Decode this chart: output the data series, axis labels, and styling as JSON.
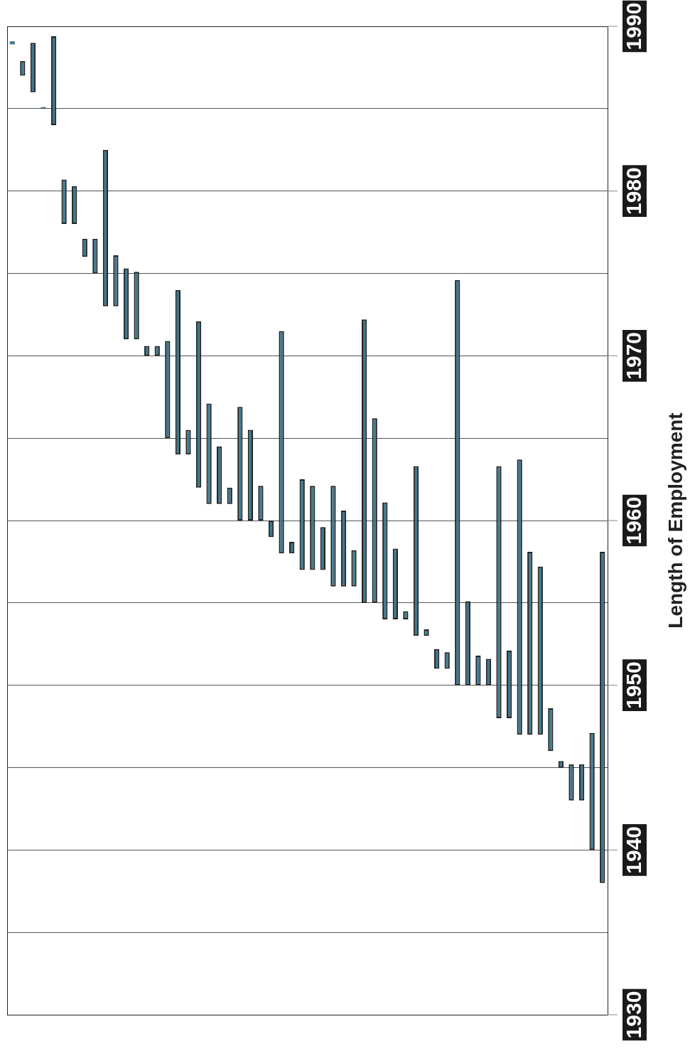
{
  "chart_data": {
    "type": "bar",
    "ylabel": "Length of Employment",
    "categories": [
      null,
      null,
      null,
      null,
      null,
      null,
      null,
      null,
      null,
      null,
      null,
      null,
      null,
      null,
      null,
      null,
      null,
      null,
      null,
      null,
      null,
      null,
      null,
      null,
      null,
      null,
      null,
      null,
      null,
      null,
      null,
      null,
      null,
      null,
      null,
      null,
      null,
      null,
      null,
      null,
      null,
      null,
      null,
      null,
      null,
      null,
      null,
      null,
      null,
      null,
      null,
      null,
      null,
      null,
      null,
      null,
      null,
      null
    ],
    "base": [
      1988.9,
      1987,
      1986,
      1985,
      1984,
      1978,
      1978,
      1976,
      1975,
      1973,
      1973,
      1971,
      1971,
      1970,
      1970,
      1965,
      1964,
      1964,
      1962,
      1961,
      1961,
      1961,
      1960,
      1960,
      1960,
      1959,
      1958,
      1958,
      1957,
      1957,
      1957,
      1956,
      1956,
      1956,
      1955,
      1955,
      1954,
      1954,
      1954,
      1953,
      1953,
      1951,
      1951,
      1950,
      1950,
      1950,
      1950,
      1948,
      1948,
      1947,
      1947,
      1947,
      1946,
      1945,
      1943,
      1943,
      1940,
      1938
    ],
    "values": [
      0.2,
      0.9,
      3,
      0.1,
      5.4,
      2.7,
      2.3,
      1.1,
      2.1,
      9.5,
      3.1,
      4.3,
      4.1,
      0.6,
      0.6,
      5.9,
      10,
      1.5,
      10.1,
      6.1,
      3.5,
      1.0,
      6.9,
      5.5,
      2.1,
      1.0,
      13.5,
      0.7,
      5.5,
      5.1,
      2.6,
      6.1,
      4.6,
      2.2,
      17.2,
      11.2,
      7.1,
      4.3,
      0.5,
      10.3,
      0.4,
      1.2,
      1.0,
      24.6,
      5.1,
      1.8,
      1.6,
      15.3,
      4.1,
      16.7,
      11.1,
      10.2,
      2.6,
      0.4,
      2.2,
      2.2,
      7.1,
      20.1
    ],
    "color": "#3b7891",
    "ylim": [
      1930,
      1990
    ],
    "yticks": [
      1930,
      {
        "value": 1935,
        "label": null
      },
      1940,
      {
        "value": 1945,
        "label": null
      },
      1950,
      {
        "value": 1955,
        "label": null
      },
      1960,
      {
        "value": 1965,
        "label": null
      },
      1970,
      {
        "value": 1975,
        "label": null
      },
      1980,
      {
        "value": 1985,
        "label": null
      },
      1990
    ],
    "grid": "y",
    "tick_labels": "y"
  }
}
